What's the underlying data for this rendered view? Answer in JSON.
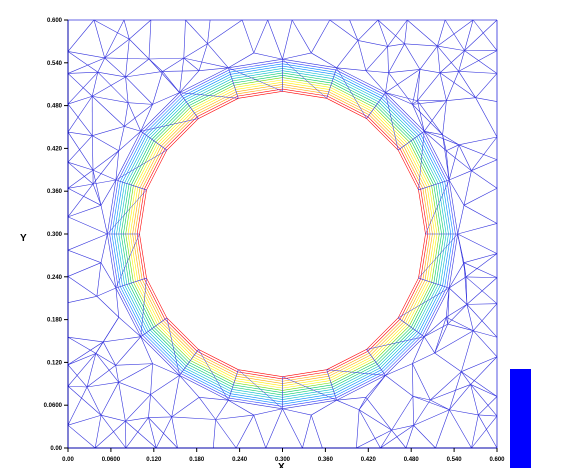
{
  "chart_data": {
    "type": "mesh",
    "title": "",
    "xlabel": "X",
    "ylabel": "Y",
    "xlim": [
      0.0,
      0.6
    ],
    "ylim": [
      0.0,
      0.6
    ],
    "x_ticks": [
      "0.00",
      "0.0600",
      "0.120",
      "0.180",
      "0.240",
      "0.300",
      "0.360",
      "0.420",
      "0.480",
      "0.540",
      "0.600"
    ],
    "y_ticks": [
      "0.00",
      "0.0600",
      "0.120",
      "0.180",
      "0.240",
      "0.300",
      "0.360",
      "0.420",
      "0.480",
      "0.540",
      "0.600"
    ],
    "hole": {
      "center": [
        0.3,
        0.3
      ],
      "radius": 0.2
    },
    "boundary_layer": {
      "segments": 20,
      "layers": 14,
      "thickness": 0.045
    },
    "colors": {
      "mesh": "#3333dd",
      "axis": "#000000",
      "legend_bar": "#0000ff",
      "layer_gradient": [
        "#ff0000",
        "#ffaa00",
        "#ffee00",
        "#66dd00",
        "#00cc66",
        "#00bbcc",
        "#0088ff",
        "#3344ff"
      ]
    }
  }
}
